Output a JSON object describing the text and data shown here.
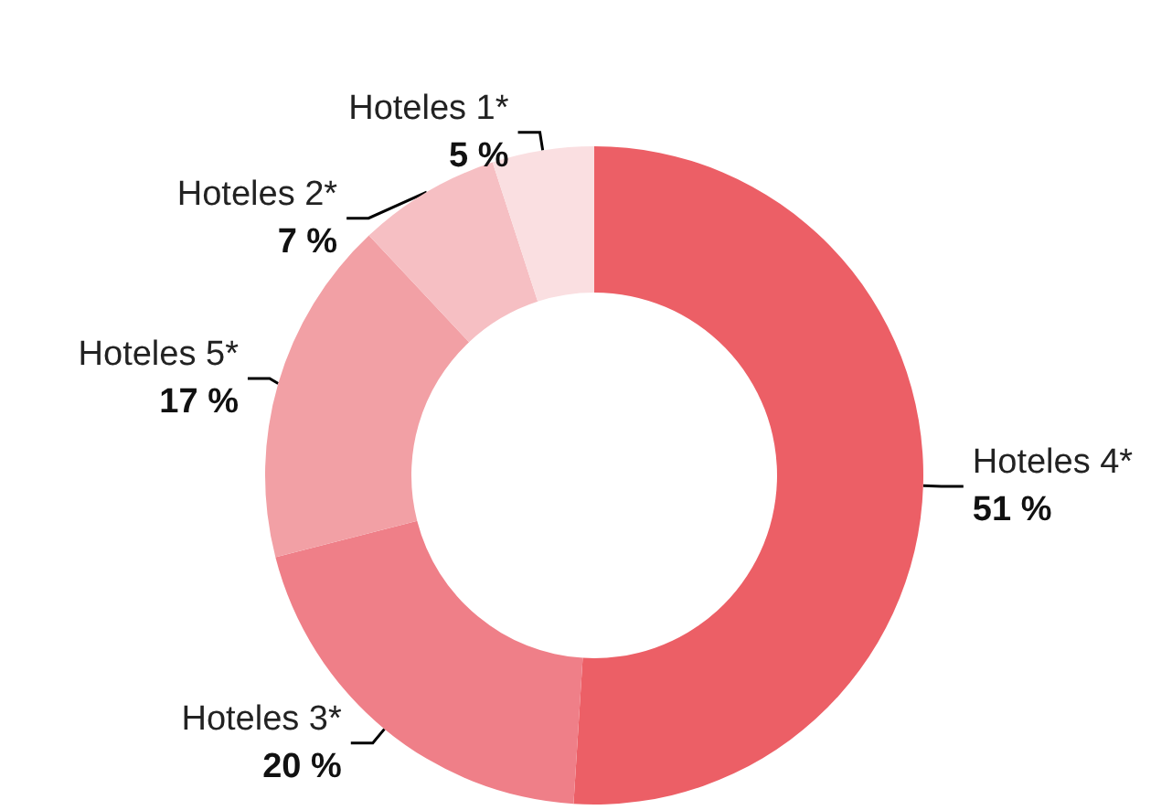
{
  "chart_data": {
    "type": "donut",
    "categories": [
      "Hoteles 4*",
      "Hoteles 3*",
      "Hoteles 5*",
      "Hoteles 2*",
      "Hoteles 1*"
    ],
    "values": [
      51,
      20,
      17,
      7,
      5
    ],
    "value_labels": [
      "51 %",
      "20 %",
      "17 %",
      "7 %",
      "5 %"
    ],
    "colors": [
      "#ec5f66",
      "#ef7f88",
      "#f2a0a5",
      "#f6bfc3",
      "#fadfe1"
    ],
    "legend": false
  }
}
